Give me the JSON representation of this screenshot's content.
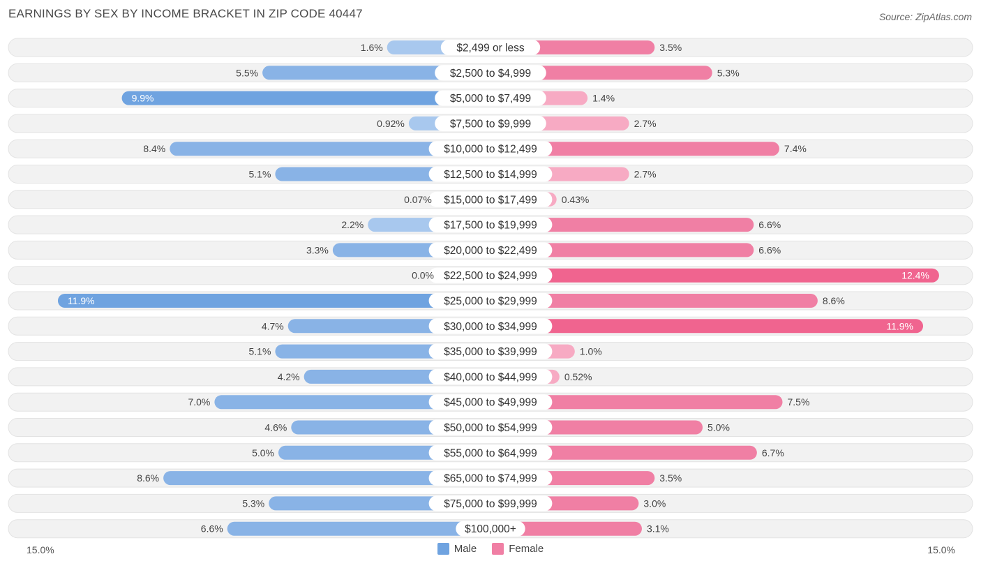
{
  "title": "EARNINGS BY SEX BY INCOME BRACKET IN ZIP CODE 40447",
  "source": "Source: ZipAtlas.com",
  "colors": {
    "male": "#6fa3e0",
    "male_light": "#a8c8ee",
    "female": "#f07fa4",
    "female_light": "#f7aac3",
    "female_strong": "#f0648f",
    "row_bg": "#f2f2f2"
  },
  "chart_data": {
    "type": "bar",
    "orientation": "horizontal-diverging",
    "title": "EARNINGS BY SEX BY INCOME BRACKET IN ZIP CODE 40447",
    "axis_min_label": "15.0%",
    "axis_max_label": "15.0%",
    "xlim": [
      -15,
      15
    ],
    "legend_position": "bottom-center",
    "categories": [
      "$2,499 or less",
      "$2,500 to $4,999",
      "$5,000 to $7,499",
      "$7,500 to $9,999",
      "$10,000 to $12,499",
      "$12,500 to $14,999",
      "$15,000 to $17,499",
      "$17,500 to $19,999",
      "$20,000 to $22,499",
      "$22,500 to $24,999",
      "$25,000 to $29,999",
      "$30,000 to $34,999",
      "$35,000 to $39,999",
      "$40,000 to $44,999",
      "$45,000 to $49,999",
      "$50,000 to $54,999",
      "$55,000 to $64,999",
      "$65,000 to $74,999",
      "$75,000 to $99,999",
      "$100,000+"
    ],
    "series": [
      {
        "name": "Male",
        "values": [
          1.6,
          5.5,
          9.9,
          0.92,
          8.4,
          5.1,
          0.07,
          2.2,
          3.3,
          0.0,
          11.9,
          4.7,
          5.1,
          4.2,
          7.0,
          4.6,
          5.0,
          8.6,
          5.3,
          6.6
        ],
        "labels": [
          "1.6%",
          "5.5%",
          "9.9%",
          "0.92%",
          "8.4%",
          "5.1%",
          "0.07%",
          "2.2%",
          "3.3%",
          "0.0%",
          "11.9%",
          "4.7%",
          "5.1%",
          "4.2%",
          "7.0%",
          "4.6%",
          "5.0%",
          "8.6%",
          "5.3%",
          "6.6%"
        ]
      },
      {
        "name": "Female",
        "values": [
          3.5,
          5.3,
          1.4,
          2.7,
          7.4,
          2.7,
          0.43,
          6.6,
          6.6,
          12.4,
          8.6,
          11.9,
          1.0,
          0.52,
          7.5,
          5.0,
          6.7,
          3.5,
          3.0,
          3.1
        ],
        "labels": [
          "3.5%",
          "5.3%",
          "1.4%",
          "2.7%",
          "7.4%",
          "2.7%",
          "0.43%",
          "6.6%",
          "6.6%",
          "12.4%",
          "8.6%",
          "11.9%",
          "1.0%",
          "0.52%",
          "7.5%",
          "5.0%",
          "6.7%",
          "3.5%",
          "3.0%",
          "3.1%"
        ]
      }
    ]
  },
  "legend": {
    "male_label": "Male",
    "female_label": "Female"
  }
}
